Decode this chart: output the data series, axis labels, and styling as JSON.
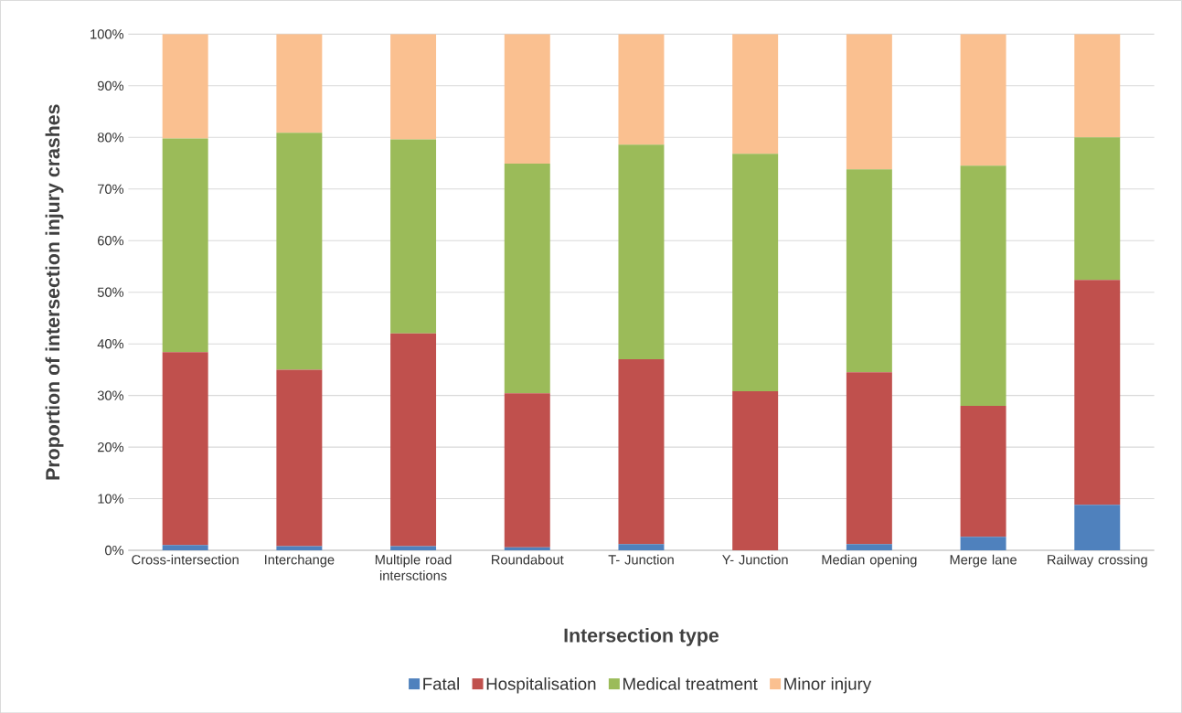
{
  "chart_data": {
    "type": "bar",
    "stacked": true,
    "xlabel": "Intersection type",
    "ylabel": "Proportion of intersection injury crashes",
    "categories": [
      "Cross-intersection",
      "Interchange",
      "Multiple road intersctions",
      "Roundabout",
      "T- Junction",
      "Y- Junction",
      "Median opening",
      "Merge lane",
      "Railway crossing"
    ],
    "series": [
      {
        "name": "Fatal",
        "color": "#4f81bd",
        "values": [
          1.0,
          0.8,
          0.8,
          0.6,
          1.2,
          0.0,
          1.2,
          2.6,
          8.8
        ]
      },
      {
        "name": "Hospitalisation",
        "color": "#c0504d",
        "values": [
          37.4,
          34.2,
          41.2,
          29.8,
          35.8,
          30.8,
          33.3,
          25.4,
          43.6
        ]
      },
      {
        "name": "Medical treatment",
        "color": "#9bbb59",
        "values": [
          41.4,
          45.9,
          37.6,
          44.5,
          41.6,
          46.0,
          39.3,
          46.5,
          27.6
        ]
      },
      {
        "name": "Minor injury",
        "color": "#fac090",
        "values": [
          20.2,
          19.1,
          20.4,
          25.1,
          21.4,
          23.2,
          26.2,
          25.5,
          20.0
        ]
      }
    ],
    "ylim": [
      0,
      100
    ],
    "yticks": [
      {
        "value": 0,
        "label": "0%"
      },
      {
        "value": 10,
        "label": "10%"
      },
      {
        "value": 20,
        "label": "20%"
      },
      {
        "value": 30,
        "label": "30%"
      },
      {
        "value": 40,
        "label": "40%"
      },
      {
        "value": 50,
        "label": "50%"
      },
      {
        "value": 60,
        "label": "60%"
      },
      {
        "value": 70,
        "label": "70%"
      },
      {
        "value": 80,
        "label": "80%"
      },
      {
        "value": 90,
        "label": "90%"
      },
      {
        "value": 100,
        "label": "100%"
      }
    ],
    "grid": "y",
    "legend": "bottom"
  }
}
